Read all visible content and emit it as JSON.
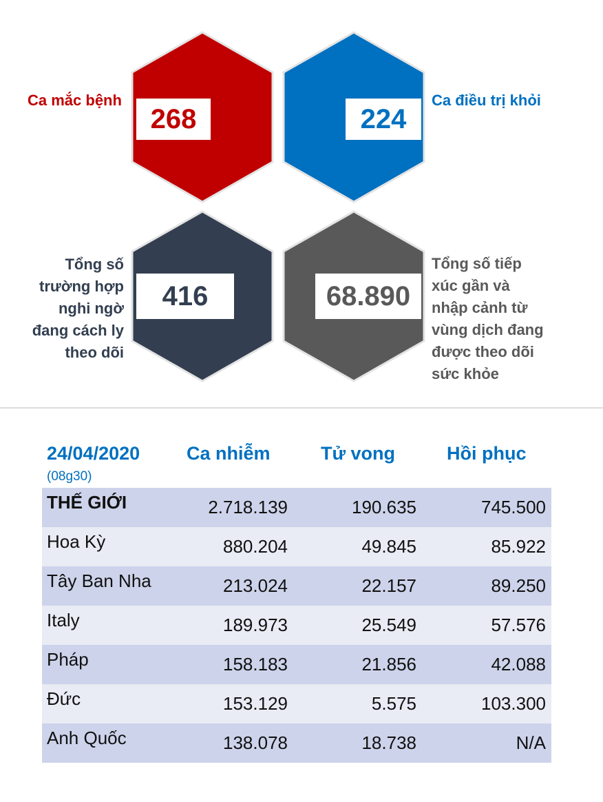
{
  "stats": {
    "infected": {
      "label": "Ca mắc bệnh",
      "value": "268",
      "color": "#c00000"
    },
    "recovered": {
      "label": "Ca điều trị khỏi",
      "value": "224",
      "color": "#0070c0"
    },
    "suspected": {
      "label_lines": [
        "Tổng số",
        "trường hợp",
        "nghi ngờ",
        "đang cách ly",
        "theo dõi"
      ],
      "value": "416",
      "color": "#333f50"
    },
    "monitored": {
      "label_lines": [
        "Tổng số tiếp",
        "xúc gần và",
        "nhập cảnh từ",
        "vùng dịch đang",
        "được theo dõi",
        "sức khỏe"
      ],
      "value": "68.890",
      "color": "#595959"
    }
  },
  "table": {
    "date": "24/04/2020",
    "time": "(08g30)",
    "headers": [
      "Ca nhiễm",
      "Tử vong",
      "Hồi phục"
    ],
    "rows": [
      {
        "country": "THẾ GIỚI",
        "cases": "2.718.139",
        "deaths": "190.635",
        "recovered": "745.500"
      },
      {
        "country": "Hoa Kỳ",
        "cases": "880.204",
        "deaths": "49.845",
        "recovered": "85.922"
      },
      {
        "country": "Tây Ban Nha",
        "cases": "213.024",
        "deaths": "22.157",
        "recovered": "89.250"
      },
      {
        "country": "Italy",
        "cases": "189.973",
        "deaths": "25.549",
        "recovered": "57.576"
      },
      {
        "country": "Pháp",
        "cases": "158.183",
        "deaths": "21.856",
        "recovered": "42.088"
      },
      {
        "country": "Đức",
        "cases": "153.129",
        "deaths": "5.575",
        "recovered": "103.300"
      },
      {
        "country": "Anh Quốc",
        "cases": "138.078",
        "deaths": "18.738",
        "recovered": "N/A"
      }
    ]
  }
}
